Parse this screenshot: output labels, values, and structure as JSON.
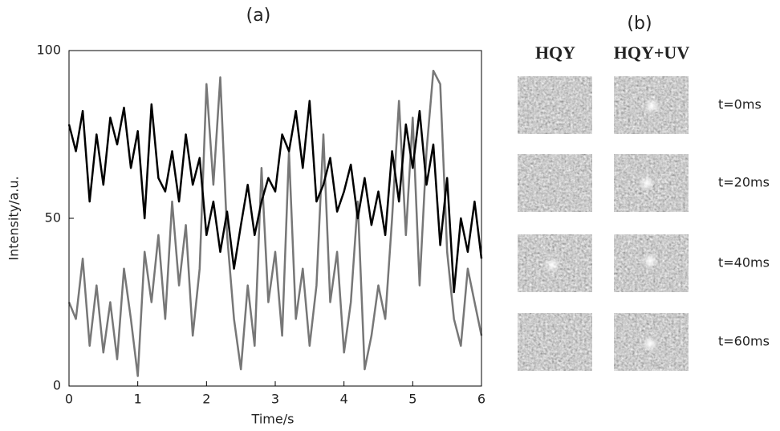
{
  "chart_data": {
    "type": "line",
    "title": "(a)",
    "x_label": "Time/s",
    "y_label": "Intensity/a.u.",
    "x": [
      0,
      0.1,
      0.2,
      0.3,
      0.4,
      0.5,
      0.6,
      0.7,
      0.8,
      0.9,
      1,
      1.1,
      1.2,
      1.3,
      1.4,
      1.5,
      1.6,
      1.7,
      1.8,
      1.9,
      2,
      2.1,
      2.2,
      2.3,
      2.4,
      2.5,
      2.6,
      2.7,
      2.8,
      2.9,
      3,
      3.1,
      3.2,
      3.3,
      3.4,
      3.5,
      3.6,
      3.7,
      3.8,
      3.9,
      4,
      4.1,
      4.2,
      4.3,
      4.4,
      4.5,
      4.6,
      4.7,
      4.8,
      4.9,
      5,
      5.1,
      5.2,
      5.3,
      5.4,
      5.5,
      5.6,
      5.7,
      5.8,
      5.9,
      6
    ],
    "series": [
      {
        "color": "#777777",
        "values": [
          25,
          20,
          38,
          12,
          30,
          10,
          25,
          8,
          35,
          20,
          3,
          40,
          25,
          45,
          20,
          55,
          30,
          48,
          15,
          35,
          90,
          60,
          92,
          45,
          20,
          5,
          30,
          12,
          65,
          25,
          40,
          15,
          70,
          20,
          35,
          12,
          30,
          75,
          25,
          40,
          10,
          25,
          55,
          5,
          15,
          30,
          20,
          50,
          85,
          45,
          80,
          30,
          70,
          94,
          90,
          40,
          20,
          12,
          35,
          25,
          15
        ]
      },
      {
        "color": "#000000",
        "values": [
          78,
          70,
          82,
          55,
          75,
          60,
          80,
          72,
          83,
          65,
          76,
          50,
          84,
          62,
          58,
          70,
          55,
          75,
          60,
          68,
          45,
          55,
          40,
          52,
          35,
          48,
          60,
          45,
          55,
          62,
          58,
          75,
          70,
          82,
          65,
          85,
          55,
          60,
          68,
          52,
          58,
          66,
          50,
          62,
          48,
          58,
          45,
          70,
          55,
          78,
          65,
          82,
          60,
          72,
          42,
          62,
          28,
          50,
          40,
          55,
          38
        ]
      }
    ],
    "xlim": [
      0,
      6
    ],
    "xticks": [
      0,
      1,
      2,
      3,
      4,
      5,
      6
    ],
    "ylim": [
      0,
      100
    ],
    "yticks": [
      0,
      50,
      100
    ]
  },
  "panel_b": {
    "title": "(b)",
    "columns": [
      "HQY",
      "HQY+UV"
    ],
    "rows": [
      "t=0ms",
      "t=20ms",
      "t=40ms",
      "t=60ms"
    ]
  }
}
